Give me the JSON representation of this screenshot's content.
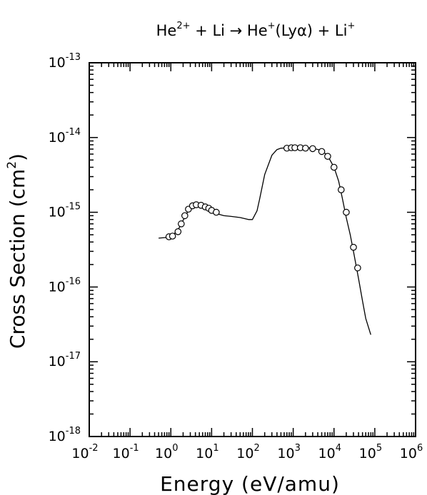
{
  "chart_data": {
    "type": "line",
    "title": "He²⁺ + Li → He⁺(Lyα) + Li⁺",
    "title_parts": {
      "a": "He",
      "a_sup": "2+",
      "b": " + Li → He",
      "b_sup": "+",
      "c": "(Lyα) + Li",
      "c_sup": "+"
    },
    "xlabel": "Energy (eV/amu)",
    "ylabel": "Cross Section (cm",
    "ylabel_sup": "2",
    "ylabel_close": ")",
    "x_scale": "log",
    "y_scale": "log",
    "xlim": [
      0.01,
      1000000
    ],
    "ylim": [
      1e-18,
      1e-13
    ],
    "x_ticks": [
      {
        "base": "10",
        "exp": "-2"
      },
      {
        "base": "10",
        "exp": "-1"
      },
      {
        "base": "10",
        "exp": "0"
      },
      {
        "base": "10",
        "exp": "1"
      },
      {
        "base": "10",
        "exp": "2"
      },
      {
        "base": "10",
        "exp": "3"
      },
      {
        "base": "10",
        "exp": "4"
      },
      {
        "base": "10",
        "exp": "5"
      },
      {
        "base": "10",
        "exp": "6"
      }
    ],
    "y_ticks": [
      {
        "base": "10",
        "exp": "-18"
      },
      {
        "base": "10",
        "exp": "-17"
      },
      {
        "base": "10",
        "exp": "-16"
      },
      {
        "base": "10",
        "exp": "-15"
      },
      {
        "base": "10",
        "exp": "-14"
      },
      {
        "base": "10",
        "exp": "-13"
      }
    ],
    "grid": false,
    "series": [
      {
        "style": "line",
        "x": [
          0.5,
          0.8,
          1.2,
          1.6,
          2,
          2.5,
          3,
          4,
          5,
          6,
          7,
          8,
          10,
          15,
          20,
          30,
          50,
          80,
          100,
          130,
          150,
          200,
          300,
          400,
          500,
          700,
          1000,
          2000,
          3000,
          5000,
          7000,
          10000,
          13000,
          16000,
          20000,
          25000,
          30000,
          40000,
          50000,
          60000,
          80000
        ],
        "y": [
          4.5e-16,
          4.6e-16,
          5.1e-16,
          6.2e-16,
          7.8e-16,
          9.8e-16,
          1.12e-15,
          1.24e-15,
          1.27e-15,
          1.25e-15,
          1.2e-15,
          1.14e-15,
          1.04e-15,
          9.4e-16,
          9e-16,
          8.8e-16,
          8.5e-16,
          8e-16,
          8e-16,
          1.05e-15,
          1.5e-15,
          3.2e-15,
          5.8e-15,
          6.9e-15,
          7.2e-15,
          7.3e-15,
          7.3e-15,
          7.3e-15,
          7.2e-15,
          6.7e-15,
          5.7e-15,
          4e-15,
          2.6e-15,
          1.55e-15,
          8.5e-16,
          5e-16,
          3e-16,
          1.3e-16,
          6.5e-17,
          3.8e-17,
          2.3e-17
        ]
      },
      {
        "style": "markers",
        "marker": "circle",
        "x": [
          0.9,
          1.1,
          1.5,
          1.8,
          2.2,
          2.7,
          3.4,
          4.2,
          5.5,
          7,
          8.5,
          10,
          13,
          700,
          900,
          1100,
          1500,
          2000,
          3000,
          5000,
          7000,
          10000,
          15000,
          20000,
          30000,
          38000
        ],
        "y": [
          4.7e-16,
          4.8e-16,
          5.5e-16,
          7e-16,
          9e-16,
          1.1e-15,
          1.22e-15,
          1.26e-15,
          1.24e-15,
          1.18e-15,
          1.13e-15,
          1.06e-15,
          1e-15,
          7.2e-15,
          7.3e-15,
          7.3e-15,
          7.3e-15,
          7.2e-15,
          7.1e-15,
          6.5e-15,
          5.6e-15,
          4e-15,
          2e-15,
          1e-15,
          3.4e-16,
          1.8e-16
        ]
      }
    ]
  }
}
